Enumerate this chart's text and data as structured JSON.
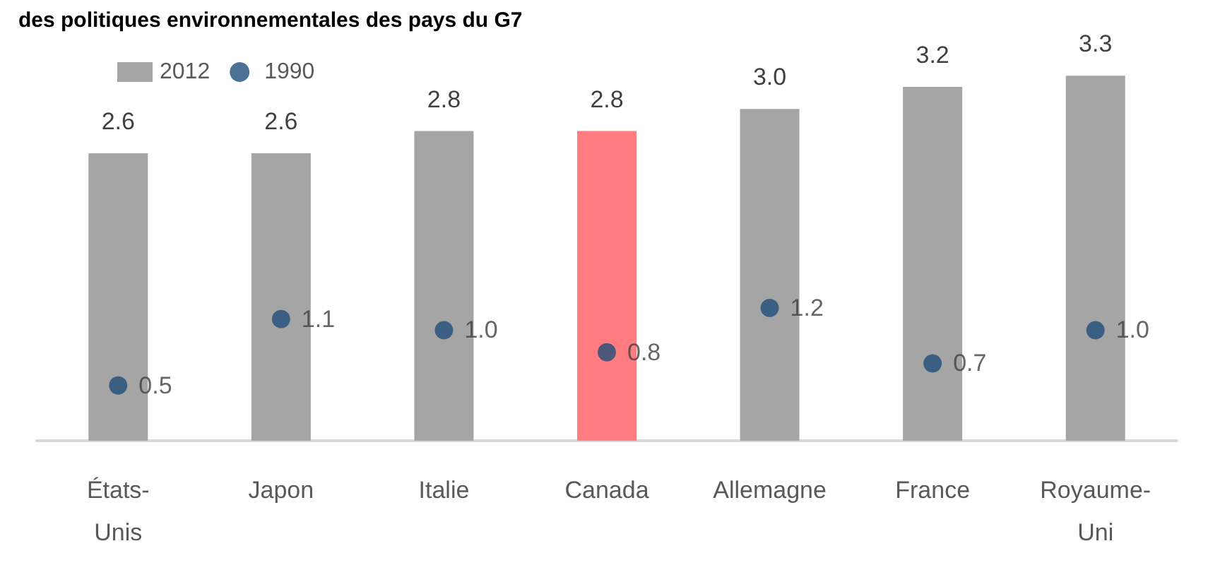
{
  "chart_data": {
    "type": "bar",
    "title": "des politiques environnementales des pays du G7",
    "categories": [
      "États-\nUnis",
      "Japon",
      "Italie",
      "Canada",
      "Allemagne",
      "France",
      "Royaume-\nUni"
    ],
    "series": [
      {
        "name": "2012",
        "color": "#a5a5a5",
        "colors": [
          "#a5a5a5",
          "#a5a5a5",
          "#a5a5a5",
          "#ff7c80",
          "#a5a5a5",
          "#a5a5a5",
          "#a5a5a5"
        ],
        "values": [
          2.6,
          2.6,
          2.8,
          2.8,
          3.0,
          3.2,
          3.3
        ],
        "value_labels": [
          "2.6",
          "2.6",
          "2.8",
          "2.8",
          "3.0",
          "3.2",
          "3.3"
        ]
      },
      {
        "name": "1990",
        "type": "scatter",
        "color": "#1f4e79",
        "x": [
          "États-\nUnis",
          "Japon",
          "Italie",
          "Canada",
          "Allemagne",
          "France",
          "Royaume-\nUni"
        ],
        "values": [
          0.5,
          1.1,
          1.0,
          0.8,
          1.2,
          0.7,
          1.0
        ],
        "value_labels": [
          "0.5",
          "1.1",
          "1.0",
          "0.8",
          "1.2",
          "0.7",
          "1.0"
        ]
      }
    ],
    "legend": "top left",
    "marker": "circle"
  }
}
